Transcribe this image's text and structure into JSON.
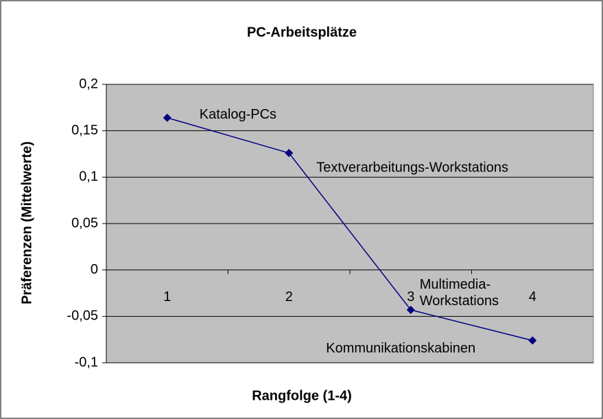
{
  "chart_data": {
    "type": "line",
    "title": "PC-Arbeitsplätze",
    "x_label": "Rangfolge (1-4)",
    "y_label": "Präferenzen (Mittelwerte)",
    "categories": [
      "1",
      "2",
      "3",
      "4"
    ],
    "series": [
      {
        "color": "#000080",
        "values": [
          0.164,
          0.126,
          -0.043,
          -0.076
        ]
      }
    ],
    "point_labels": [
      [
        "Katalog-PCs"
      ],
      [
        "Textverarbeitungs-Workstations"
      ],
      [
        "Multimedia-",
        "Workstations"
      ],
      [
        "Kommunikationskabinen"
      ]
    ],
    "ylim": [
      -0.1,
      0.2
    ],
    "yticks": [
      {
        "value": -0.1,
        "label": "-0,1"
      },
      {
        "value": -0.05,
        "label": "-0,05"
      },
      0,
      {
        "value": 0.05,
        "label": "0,05"
      },
      {
        "value": 0.1,
        "label": "0,1"
      },
      {
        "value": 0.15,
        "label": "0,15"
      },
      {
        "value": 0.2,
        "label": "0,2"
      }
    ],
    "grid": true,
    "plot_background": "#c0c0c0"
  }
}
